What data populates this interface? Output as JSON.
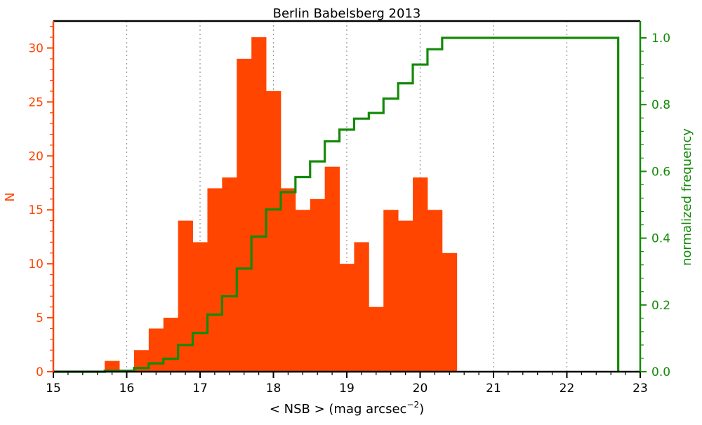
{
  "chart_data": {
    "type": "bar",
    "title": "Berlin Babelsberg 2013",
    "xlabel": "< NSB >  (mag arcsec",
    "xlabel_exponent": "−2",
    "xlabel_close": ")",
    "ylabel_left": "N",
    "ylabel_right": "normalized frequency",
    "xlim": [
      15,
      23
    ],
    "ylim_left": [
      0,
      32.5
    ],
    "ylim_right": [
      0,
      1.0
    ],
    "x_ticks": [
      15,
      16,
      17,
      18,
      19,
      20,
      21,
      22,
      23
    ],
    "x_tick_labels": [
      "15",
      "16",
      "17",
      "18",
      "19",
      "20",
      "21",
      "22",
      "23"
    ],
    "y_left_ticks": [
      0,
      5,
      10,
      15,
      20,
      25,
      30
    ],
    "y_left_tick_labels": [
      "0",
      "5",
      "10",
      "15",
      "20",
      "25",
      "30"
    ],
    "y_right_ticks": [
      0,
      0.2,
      0.4,
      0.6,
      0.8,
      1.0
    ],
    "y_right_tick_labels": [
      "0.0",
      "0.2",
      "0.4",
      "0.6",
      "0.8",
      "1.0"
    ],
    "grid": "vertical dotted",
    "series": [
      {
        "kind": "histogram",
        "color": "#ff4500",
        "bin_edges": [
          15.7,
          15.9,
          16.1,
          16.3,
          16.5,
          16.7,
          16.9,
          17.1,
          17.3,
          17.5,
          17.7,
          17.9,
          18.1,
          18.3,
          18.5,
          18.7,
          18.9,
          19.1,
          19.3,
          19.5,
          19.7,
          19.9,
          20.1,
          20.3,
          20.5
        ],
        "values": [
          1,
          0,
          2,
          4,
          5,
          14,
          12,
          17,
          18,
          29,
          31,
          26,
          17,
          15,
          16,
          19,
          10,
          12,
          6,
          15,
          14,
          18,
          15,
          11
        ]
      },
      {
        "kind": "cumulative-step",
        "color": "#138a07",
        "x": [
          15.0,
          15.7,
          15.9,
          16.1,
          16.3,
          16.5,
          16.7,
          16.9,
          17.1,
          17.3,
          17.5,
          17.7,
          17.9,
          18.1,
          18.3,
          18.5,
          18.7,
          18.9,
          19.1,
          19.3,
          19.5,
          19.7,
          19.9,
          20.1,
          20.3,
          22.7
        ],
        "values": [
          0.0,
          0.003,
          0.003,
          0.011,
          0.025,
          0.039,
          0.08,
          0.116,
          0.171,
          0.226,
          0.309,
          0.405,
          0.486,
          0.538,
          0.583,
          0.63,
          0.69,
          0.725,
          0.758,
          0.775,
          0.818,
          0.864,
          0.92,
          0.966,
          1.0,
          1.0
        ],
        "end_x": 22.7
      }
    ]
  }
}
